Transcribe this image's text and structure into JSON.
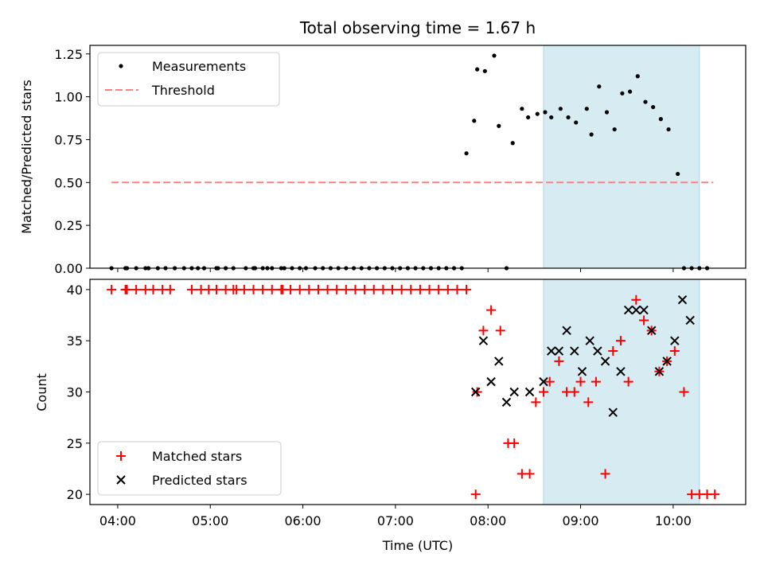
{
  "chart_data": [
    {
      "type": "scatter",
      "title": "Total observing time = 1.67 h",
      "xlabel": "",
      "ylabel": "Matched/Predicted stars",
      "xlim": [
        "03:42",
        "10:47"
      ],
      "ylim": [
        0,
        1.3
      ],
      "yticks": [
        "0.00",
        "0.25",
        "0.50",
        "0.75",
        "1.00",
        "1.25"
      ],
      "shaded_region": {
        "start": "08:36",
        "end": "10:17",
        "color": "#add8e6"
      },
      "legend": {
        "placement": "top-left",
        "entries": [
          "Measurements",
          "Threshold"
        ]
      },
      "series": [
        {
          "name": "Measurements",
          "kind": "points",
          "color": "#000000",
          "x": [
            "03:56",
            "04:05",
            "04:06",
            "04:12",
            "04:18",
            "04:20",
            "04:26",
            "04:31",
            "04:37",
            "04:43",
            "04:48",
            "04:52",
            "04:56",
            "05:04",
            "05:05",
            "05:10",
            "05:15",
            "05:23",
            "05:28",
            "05:29",
            "05:34",
            "05:37",
            "05:40",
            "05:46",
            "05:48",
            "05:53",
            "05:58",
            "06:02",
            "06:08",
            "06:13",
            "06:18",
            "06:23",
            "06:28",
            "06:33",
            "06:38",
            "06:43",
            "06:48",
            "06:53",
            "06:58",
            "07:03",
            "07:08",
            "07:13",
            "07:18",
            "07:23",
            "07:28",
            "07:33",
            "07:38",
            "07:43",
            "07:46",
            "07:51",
            "07:53",
            "07:58",
            "08:04",
            "08:07",
            "08:12",
            "08:16",
            "08:22",
            "08:26",
            "08:32",
            "08:37",
            "08:41",
            "08:47",
            "08:52",
            "08:57",
            "09:04",
            "09:07",
            "09:12",
            "09:17",
            "09:22",
            "09:27",
            "09:32",
            "09:37",
            "09:42",
            "09:47",
            "09:52",
            "09:57",
            "10:03",
            "10:07",
            "10:12",
            "10:17",
            "10:22"
          ],
          "y": [
            0,
            0,
            0,
            0,
            0,
            0,
            0,
            0,
            0,
            0,
            0,
            0,
            0,
            0,
            0,
            0,
            0,
            0,
            0,
            0,
            0,
            0,
            0,
            0,
            0,
            0,
            0,
            0,
            0,
            0,
            0,
            0,
            0,
            0,
            0,
            0,
            0,
            0,
            0,
            0,
            0,
            0,
            0,
            0,
            0,
            0,
            0,
            0,
            0.67,
            0.86,
            1.16,
            1.15,
            1.24,
            0.83,
            0,
            0.73,
            0.93,
            0.88,
            0.9,
            0.91,
            0.88,
            0.93,
            0.88,
            0.85,
            0.93,
            0.78,
            1.06,
            0.91,
            0.81,
            1.02,
            1.03,
            1.12,
            0.97,
            0.94,
            0.87,
            0.81,
            0.55,
            0,
            0,
            0,
            0
          ]
        },
        {
          "name": "Threshold",
          "kind": "dashed-line",
          "color": "#ff7f7f",
          "x": [
            "03:56",
            "10:26"
          ],
          "y": [
            0.5,
            0.5
          ]
        }
      ]
    },
    {
      "type": "scatter",
      "title": "",
      "xlabel": "Time (UTC)",
      "ylabel": "Count",
      "xlim": [
        "03:42",
        "10:47"
      ],
      "ylim": [
        19,
        41
      ],
      "xticks": [
        "04:00",
        "05:00",
        "06:00",
        "07:00",
        "08:00",
        "09:00",
        "10:00"
      ],
      "yticks": [
        "20",
        "25",
        "30",
        "35",
        "40"
      ],
      "shaded_region": {
        "start": "08:36",
        "end": "10:17",
        "color": "#add8e6"
      },
      "legend": {
        "placement": "bottom-left",
        "entries": [
          "Matched stars",
          "Predicted stars"
        ]
      },
      "series": [
        {
          "name": "Matched stars",
          "marker": "plus",
          "color": "#ff0000",
          "x": [
            "03:56",
            "04:05",
            "04:06",
            "04:12",
            "04:18",
            "04:23",
            "04:29",
            "04:34",
            "04:48",
            "04:54",
            "04:59",
            "05:04",
            "05:10",
            "05:15",
            "05:17",
            "05:22",
            "05:28",
            "05:34",
            "05:40",
            "05:46",
            "05:47",
            "05:52",
            "05:58",
            "06:04",
            "06:10",
            "06:16",
            "06:22",
            "06:28",
            "06:34",
            "06:40",
            "06:46",
            "06:52",
            "06:58",
            "07:04",
            "07:10",
            "07:16",
            "07:22",
            "07:28",
            "07:34",
            "07:40",
            "07:46",
            "07:52",
            "07:53",
            "07:57",
            "08:02",
            "08:08",
            "08:13",
            "08:17",
            "08:22",
            "08:27",
            "08:31",
            "08:36",
            "08:40",
            "08:46",
            "08:51",
            "08:56",
            "09:00",
            "09:05",
            "09:10",
            "09:16",
            "09:21",
            "09:26",
            "09:31",
            "09:36",
            "09:41",
            "09:46",
            "09:51",
            "09:56",
            "10:01",
            "10:07",
            "10:12",
            "10:17",
            "10:22",
            "10:27"
          ],
          "y": [
            40,
            40,
            40,
            40,
            40,
            40,
            40,
            40,
            40,
            40,
            40,
            40,
            40,
            40,
            40,
            40,
            40,
            40,
            40,
            40,
            40,
            40,
            40,
            40,
            40,
            40,
            40,
            40,
            40,
            40,
            40,
            40,
            40,
            40,
            40,
            40,
            40,
            40,
            40,
            40,
            40,
            20,
            30,
            36,
            38,
            36,
            25,
            25,
            22,
            22,
            29,
            30,
            31,
            33,
            30,
            30,
            31,
            29,
            31,
            22,
            34,
            35,
            31,
            39,
            37,
            36,
            32,
            33,
            34,
            30,
            20,
            20,
            20,
            20
          ]
        },
        {
          "name": "Predicted stars",
          "marker": "x",
          "color": "#000000",
          "x": [
            "07:52",
            "07:57",
            "08:02",
            "08:07",
            "08:12",
            "08:17",
            "08:27",
            "08:36",
            "08:41",
            "08:46",
            "08:51",
            "08:56",
            "09:01",
            "09:06",
            "09:11",
            "09:16",
            "09:21",
            "09:26",
            "09:31",
            "09:36",
            "09:41",
            "09:46",
            "09:51",
            "09:56",
            "10:01",
            "10:06",
            "10:11"
          ],
          "y": [
            30,
            35,
            31,
            33,
            29,
            30,
            30,
            31,
            34,
            34,
            36,
            34,
            32,
            35,
            34,
            33,
            28,
            32,
            38,
            38,
            38,
            36,
            32,
            33,
            35,
            39,
            37
          ]
        }
      ]
    }
  ]
}
